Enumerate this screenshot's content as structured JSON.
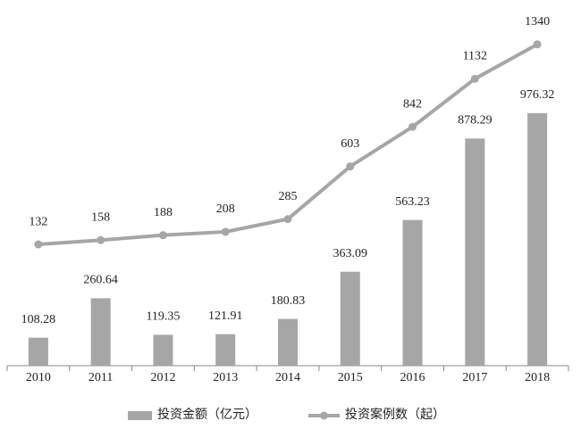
{
  "chart_data": {
    "type": "bar-line",
    "categories": [
      "2010",
      "2011",
      "2012",
      "2013",
      "2014",
      "2015",
      "2016",
      "2017",
      "2018"
    ],
    "series": [
      {
        "name": "投资金额（亿元）",
        "type": "bar",
        "color": "#a6a6a6",
        "values": [
          108.28,
          260.64,
          119.35,
          121.91,
          180.83,
          363.09,
          563.23,
          878.29,
          976.32
        ]
      },
      {
        "name": "投资案例数（起）",
        "type": "line",
        "axis": "y2",
        "color": "#a6a6a6",
        "values": [
          132,
          158,
          188,
          208,
          285,
          603,
          842,
          1132,
          1340
        ]
      }
    ],
    "ylim": [
      0,
      1300
    ],
    "y2lim": [
      -600,
      1430
    ],
    "legend": "bottom"
  }
}
